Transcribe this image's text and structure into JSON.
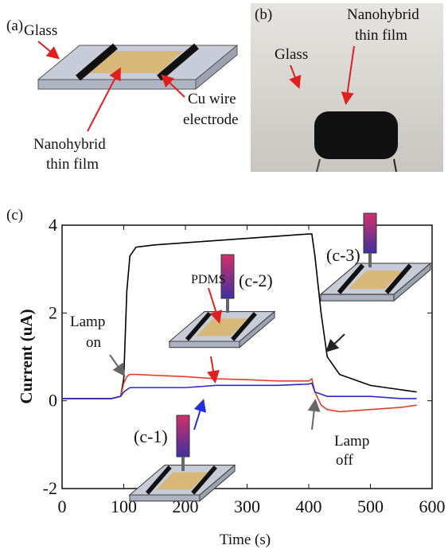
{
  "figure_a": {
    "label": "(a)",
    "glass": "Glass",
    "electrode": [
      "Cu wire",
      "electrode"
    ],
    "film": [
      "Nanohybrid",
      "thin film"
    ]
  },
  "figure_b": {
    "label": "(b)",
    "glass": "Glass",
    "film": [
      "Nanohybrid",
      "thin film"
    ]
  },
  "chart_data": {
    "type": "line",
    "label": "(c)",
    "xlabel": "Time (s)",
    "ylabel": "Current (uA)",
    "xlim": [
      0,
      600
    ],
    "ylim": [
      -2,
      4
    ],
    "xticks": [
      0,
      100,
      200,
      300,
      400,
      500,
      600
    ],
    "yticks": [
      -2,
      0,
      2,
      4
    ],
    "x": [
      0,
      20,
      40,
      60,
      80,
      95,
      100,
      105,
      110,
      120,
      150,
      200,
      250,
      300,
      350,
      400,
      405,
      410,
      420,
      430,
      450,
      500,
      550,
      575
    ],
    "series": [
      {
        "color": "#000000",
        "values": [
          0.05,
          0.05,
          0.05,
          0.05,
          0.05,
          0.1,
          0.5,
          2.5,
          3.3,
          3.5,
          3.55,
          3.6,
          3.65,
          3.7,
          3.75,
          3.8,
          3.8,
          3.3,
          2.0,
          1.0,
          0.6,
          0.35,
          0.25,
          0.2
        ]
      },
      {
        "color": "#e0402a",
        "values": [
          0.05,
          0.05,
          0.05,
          0.05,
          0.05,
          0.1,
          0.4,
          0.55,
          0.6,
          0.6,
          0.58,
          0.55,
          0.5,
          0.48,
          0.45,
          0.45,
          0.5,
          0.2,
          -0.1,
          -0.2,
          -0.25,
          -0.2,
          -0.15,
          -0.1
        ]
      },
      {
        "color": "#2a2ad0",
        "values": [
          0.05,
          0.05,
          0.05,
          0.05,
          0.05,
          0.1,
          0.2,
          0.25,
          0.3,
          0.3,
          0.3,
          0.3,
          0.35,
          0.35,
          0.35,
          0.38,
          0.4,
          0.2,
          0.15,
          0.1,
          0.1,
          0.1,
          0.05,
          0.05
        ]
      }
    ],
    "annotations": {
      "lamp_on": [
        "Lamp",
        "on"
      ],
      "lamp_off": [
        "Lamp",
        "off"
      ],
      "inset_1": "(c-1)",
      "inset_2": "(c-2)",
      "inset_3": "(c-3)",
      "pdms": "PDMS"
    }
  }
}
